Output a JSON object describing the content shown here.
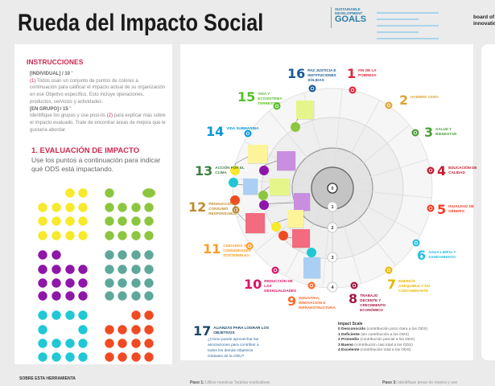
{
  "header": {
    "title": "Rueda del Impacto Social",
    "sdg_logo": {
      "line1": "SUSTAINABLE",
      "line2": "DEVELOPMENT",
      "line3": "GOALS"
    },
    "brand_logo": {
      "line1": "board of",
      "line2": "innovation"
    }
  },
  "instructions": {
    "title": "INSTRUCCIONES",
    "individual_label": "[INDIVIDUAL] / 10 '",
    "individual_marker": "(1)",
    "individual_text": " Todos usan un conjunto de puntos de colores a continuación para calificar el impacto actual de su organización en ese Objetivo específico. Esto incluye operaciones, productos, servicios y actividades.",
    "group_label": "[EN GRUPO] / 15 '",
    "group_text_a": "Identifique los grupos y use post-its ",
    "group_marker": "(2)",
    "group_text_b": " para explicar más sobre el impacto evaluado. Trate de encontrar áreas de mejora que le gustaría abordar."
  },
  "evaluation": {
    "title": "1. EVALUACIÓN DE IMPACTO",
    "subtitle": "Use los puntos a continuación para indicar qué ODS está impactando."
  },
  "dot_sets": [
    {
      "color": "#f7e92b",
      "mask": [
        "0011",
        "1111",
        "1111",
        "1111"
      ]
    },
    {
      "color": "#8cc63f",
      "mask": [
        "1002",
        "1111",
        "1111",
        "1111"
      ]
    },
    {
      "color": "#8e16a8",
      "mask": [
        "1100",
        "1111",
        "1111",
        "1111"
      ]
    },
    {
      "color": "#5ea89a",
      "mask": [
        "1111",
        "1111",
        "1111",
        "1111"
      ]
    },
    {
      "color": "#1fc8d4",
      "mask": [
        "1111",
        "1001",
        "1111",
        "1111"
      ]
    },
    {
      "color": "#f04a23",
      "mask": [
        "0011",
        "1111",
        "1111",
        "1111"
      ]
    }
  ],
  "goals": [
    {
      "num": "16",
      "label": "PAZ JUSTICIA E INSTITUCIONES SÓLIDAS",
      "color": "#1a5a96"
    },
    {
      "num": "1",
      "label": "FIN DE LA POBREZA",
      "color": "#e5243b"
    },
    {
      "num": "15",
      "label": "VIDA Y ECOSISTEMA TERRESTRE",
      "color": "#56c02b"
    },
    {
      "num": "2",
      "label": "HAMBRE CERO",
      "color": "#dda63a"
    },
    {
      "num": "14",
      "label": "VIDA SUBMARINA",
      "color": "#0a97d9"
    },
    {
      "num": "3",
      "label": "SALUD Y BIENESTAR",
      "color": "#4c9f38"
    },
    {
      "num": "13",
      "label": "ACCIÓN POR EL CLIMA",
      "color": "#3f7e44"
    },
    {
      "num": "4",
      "label": "EDUCACIÓN DE CALIDAD",
      "color": "#c5192d"
    },
    {
      "num": "12",
      "label": "PRODUCCIÓN Y CONSUMO RESPONSABLE",
      "color": "#bf8b2e"
    },
    {
      "num": "5",
      "label": "IGUALDAD DE GÉNERO",
      "color": "#ff3a21"
    },
    {
      "num": "11",
      "label": "CIUDADES Y COMUNIDADES SOSTENIBLES",
      "color": "#fd9d24"
    },
    {
      "num": "6",
      "label": "AGUA LIMPIA Y SANEAMIENTO",
      "color": "#26bde2"
    },
    {
      "num": "10",
      "label": "REDUCCIÓN DE LAS DESIGUALDADES",
      "color": "#dd1367"
    },
    {
      "num": "7",
      "label": "ENERGÍA ASEQUIBLE Y NO CONTAMINANTE",
      "color": "#e8b800"
    },
    {
      "num": "9",
      "label": "INDUSTRIA, INNOVACIÓN E INFRAESTRUCTURA",
      "color": "#fd6925"
    },
    {
      "num": "8",
      "label": "TRABAJO DECENTE Y CRECIMIENTO ECONÓMICO",
      "color": "#a21942"
    },
    {
      "num": "17",
      "label": "ALIANZAS PARA LOGRAR LOS OBJETIVOS",
      "color": "#19486a"
    }
  ],
  "goal17_text": "¿Cómo puede aprovechar las asociaciones para contribuir a todos los demás Objetivos Globales de la ONU?",
  "scale_levels": [
    "0",
    "1",
    "2",
    "3",
    "4"
  ],
  "impact_scale": {
    "title": "Impact Scale",
    "items": [
      {
        "key": "0 Desconocido",
        "desc": " (contribución poco clara a los ODS)"
      },
      {
        "key": "1 Deficiente",
        "desc": " (sin contribución a los ODS)"
      },
      {
        "key": "2 Promedio",
        "desc": " (contribución parcial a los ODS)"
      },
      {
        "key": "3 Bueno",
        "desc": " (contribución casi total a los ODS)"
      },
      {
        "key": "4 Excelente",
        "desc": " (contribución total a los ODS)"
      }
    ]
  },
  "placed_dots": [
    "#8cc63f",
    "#f7e92b",
    "#8e16a8",
    "#1fc8d4",
    "#8cc63f",
    "#f04a23",
    "#8e16a8",
    "#f7e92b",
    "#f04a23",
    "#1fc8d4"
  ],
  "postits": [
    "#e6f58a",
    "#fdf49a",
    "#c98ee0",
    "#a9cff5",
    "#e6f58a",
    "#c98ee0",
    "#f26b7e",
    "#fdf49a",
    "#f26b7e",
    "#a9cff5"
  ],
  "footer": {
    "about": "SOBRE ESTA HERRAMIENTA",
    "step1_label": "Paso 1:",
    "step1_text": " Utilice nuestras Tarjetas explicativas",
    "step3_label": "Paso 3:",
    "step3_text": " Identifique áreas de mejora y use"
  }
}
